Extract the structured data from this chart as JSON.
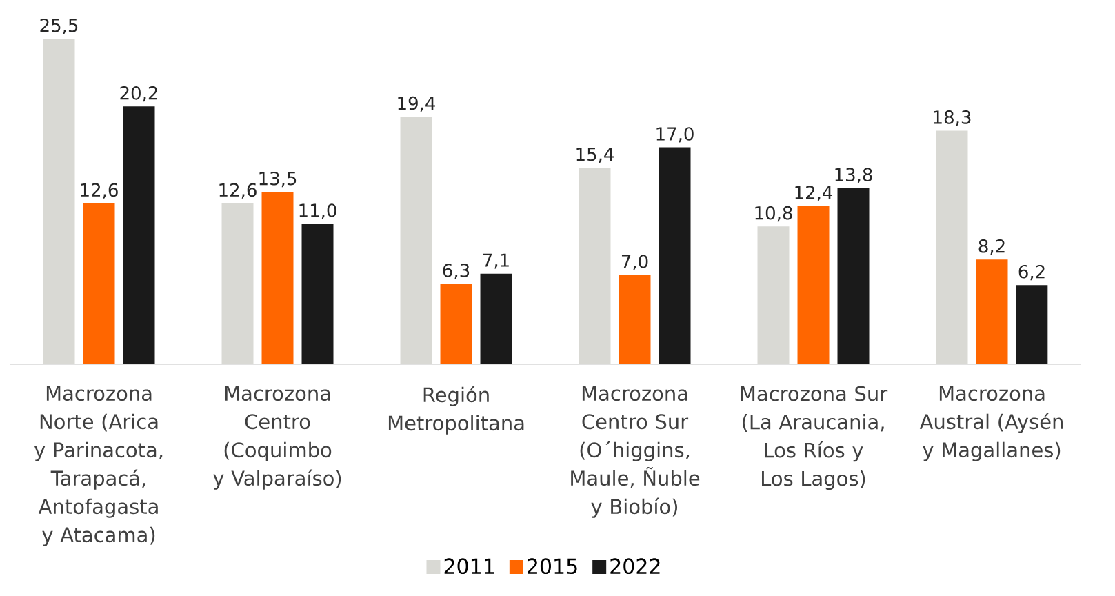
{
  "chart_data": {
    "type": "bar",
    "categories": [
      "Macrozona Norte (Arica y Parinacota, Tarapacá, Antofagasta y Atacama)",
      "Macrozona Centro (Coquimbo y Valparaíso)",
      "Región Metropolitana",
      "Macrozona Centro Sur (O´higgins, Maule, Ñuble y Biobío)",
      "Macrozona Sur (La Araucania, Los Ríos y Los Lagos)",
      "Macrozona Austral (Aysén y Magallanes)"
    ],
    "series": [
      {
        "name": "2011",
        "color": "#d9d9d4",
        "values": [
          25.5,
          12.6,
          19.4,
          15.4,
          10.8,
          18.3
        ],
        "value_labels": [
          "25,5",
          "12,6",
          "19,4",
          "15,4",
          "10,8",
          "18,3"
        ]
      },
      {
        "name": "2015",
        "color": "#ff6600",
        "values": [
          12.6,
          13.5,
          6.3,
          7.0,
          12.4,
          8.2
        ],
        "value_labels": [
          "12,6",
          "13,5",
          "6,3",
          "7,0",
          "12,4",
          "8,2"
        ]
      },
      {
        "name": "2022",
        "color": "#1a1a1a",
        "values": [
          20.2,
          11.0,
          7.1,
          17.0,
          13.8,
          6.2
        ],
        "value_labels": [
          "20,2",
          "11,0",
          "7,1",
          "17,0",
          "13,8",
          "6,2"
        ]
      }
    ],
    "legend": "bottom"
  }
}
